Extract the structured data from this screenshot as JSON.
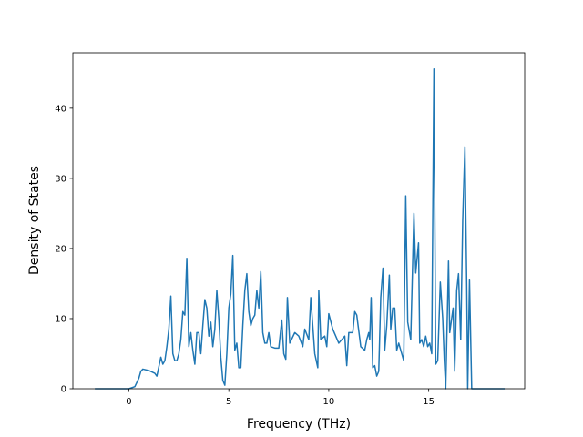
{
  "chart_data": {
    "type": "line",
    "xlabel": "Frequency (THz)",
    "ylabel": "Density of States",
    "xlim": [
      -2.8,
      19.8
    ],
    "ylim": [
      0,
      47.9
    ],
    "xticks": [
      0,
      5,
      10,
      15
    ],
    "yticks": [
      0,
      10,
      20,
      30,
      40
    ],
    "x": [
      -1.7,
      0,
      0.3,
      0.5,
      0.6,
      0.7,
      1.0,
      1.3,
      1.4,
      1.6,
      1.7,
      1.8,
      1.9,
      2.0,
      2.1,
      2.2,
      2.3,
      2.4,
      2.5,
      2.6,
      2.7,
      2.8,
      2.9,
      3.0,
      3.1,
      3.2,
      3.3,
      3.4,
      3.5,
      3.6,
      3.7,
      3.8,
      3.9,
      4.0,
      4.1,
      4.2,
      4.3,
      4.4,
      4.5,
      4.6,
      4.7,
      4.8,
      4.9,
      5.0,
      5.1,
      5.2,
      5.3,
      5.4,
      5.5,
      5.6,
      5.7,
      5.8,
      5.9,
      6.0,
      6.1,
      6.2,
      6.3,
      6.4,
      6.5,
      6.6,
      6.7,
      6.8,
      6.9,
      7.0,
      7.1,
      7.3,
      7.5,
      7.65,
      7.75,
      7.85,
      7.93,
      8.05,
      8.3,
      8.5,
      8.7,
      8.8,
      9.0,
      9.1,
      9.3,
      9.45,
      9.5,
      9.6,
      9.8,
      9.9,
      10.0,
      10.2,
      10.5,
      10.8,
      10.9,
      11.0,
      11.2,
      11.3,
      11.4,
      11.6,
      11.8,
      11.9,
      12.0,
      12.05,
      12.12,
      12.2,
      12.3,
      12.4,
      12.5,
      12.6,
      12.71,
      12.8,
      12.9,
      13.03,
      13.1,
      13.2,
      13.3,
      13.4,
      13.5,
      13.6,
      13.75,
      13.85,
      13.95,
      14.1,
      14.26,
      14.35,
      14.49,
      14.55,
      14.65,
      14.75,
      14.85,
      14.95,
      15.05,
      15.15,
      15.26,
      15.35,
      15.45,
      15.58,
      15.7,
      15.78,
      15.85,
      15.99,
      16.05,
      16.22,
      16.3,
      16.4,
      16.49,
      16.6,
      16.7,
      16.81,
      16.9,
      16.95,
      17.04,
      17.15,
      18.8
    ],
    "series": [
      {
        "color": "#1f77b4",
        "values": [
          0,
          0,
          0.3,
          1.5,
          2.5,
          2.8,
          2.6,
          2.2,
          1.8,
          4.5,
          3.5,
          4,
          6,
          8.5,
          13.2,
          5,
          4,
          4,
          5,
          7,
          11,
          10.5,
          18.6,
          6,
          8,
          5.5,
          3.5,
          8,
          8,
          5,
          9,
          12.7,
          11.5,
          7.5,
          9.5,
          6,
          8.5,
          14,
          10,
          4.5,
          1.2,
          0.5,
          5,
          11.5,
          13.5,
          19,
          5.5,
          6.5,
          3,
          3,
          9,
          14,
          16.4,
          11,
          9,
          10,
          10.5,
          14,
          11.5,
          16.7,
          8,
          6.5,
          6.5,
          8,
          6,
          5.8,
          5.8,
          9.8,
          5,
          4.2,
          13,
          6.5,
          8,
          7.5,
          6,
          8.5,
          7,
          13,
          5,
          3,
          14,
          7,
          7.5,
          6,
          10.7,
          8.5,
          6.5,
          7.5,
          3.3,
          8,
          8,
          11,
          10.5,
          6,
          5.5,
          7,
          8,
          7,
          13,
          3,
          3.3,
          1.8,
          2.5,
          13,
          17.2,
          5.5,
          9,
          16.2,
          8.5,
          11.5,
          11.5,
          5.5,
          6.5,
          5.5,
          4,
          27.5,
          9.5,
          7,
          25,
          16.5,
          20.8,
          6.5,
          7,
          6,
          7.5,
          6,
          6.5,
          5,
          45.6,
          3.5,
          4,
          15.2,
          10,
          4,
          0,
          18.2,
          8,
          11.5,
          2.5,
          14,
          16.4,
          7,
          24,
          34.5,
          15,
          0,
          15.5,
          0,
          0
        ]
      }
    ]
  }
}
